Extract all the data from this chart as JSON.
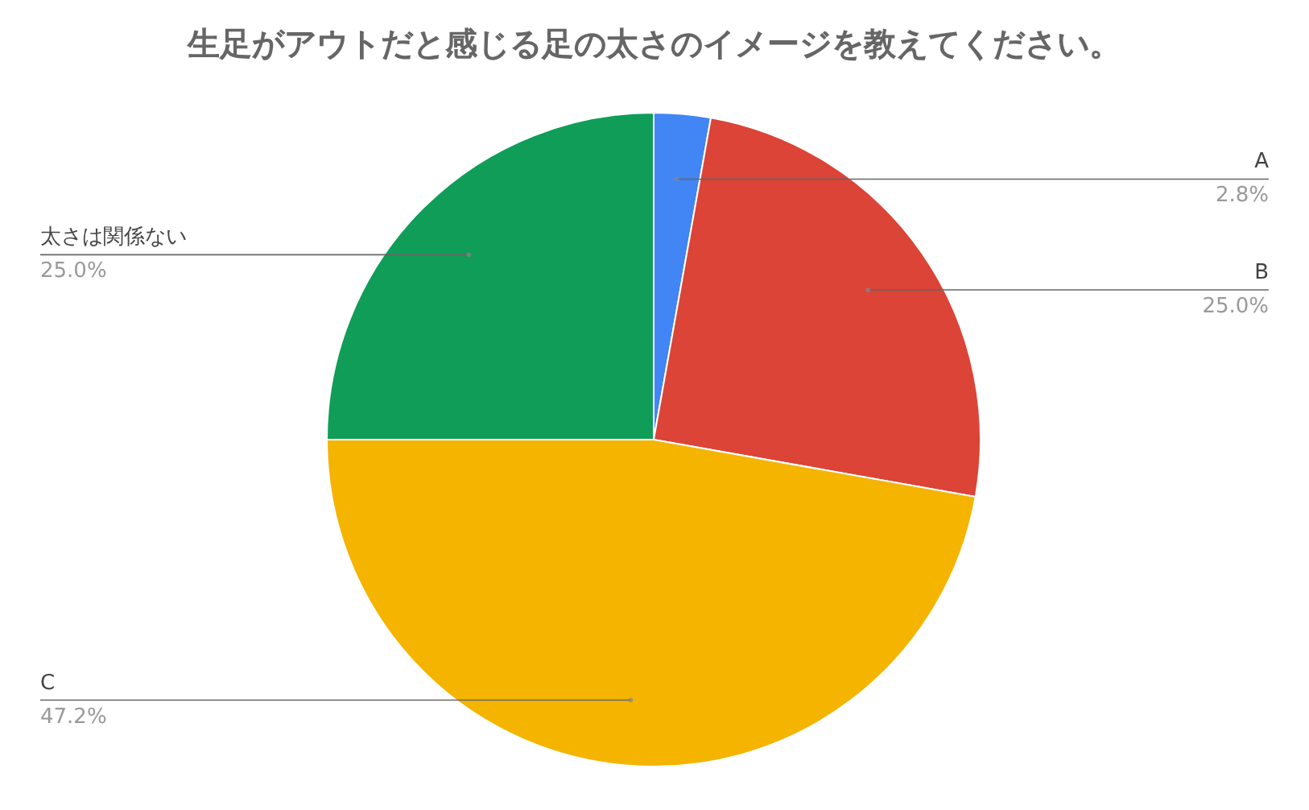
{
  "chart_data": {
    "type": "pie",
    "title": "生足がアウトだと感じる足の太さのイメージを教えてください。",
    "categories": [
      "A",
      "B",
      "C",
      "太さは関係ない"
    ],
    "values": [
      2.8,
      25.0,
      47.2,
      25.0
    ],
    "value_labels": [
      "2.8%",
      "25.0%",
      "47.2%",
      "25.0%"
    ],
    "colors": [
      "#4285f4",
      "#db4437",
      "#f4b400",
      "#0f9d58"
    ]
  }
}
